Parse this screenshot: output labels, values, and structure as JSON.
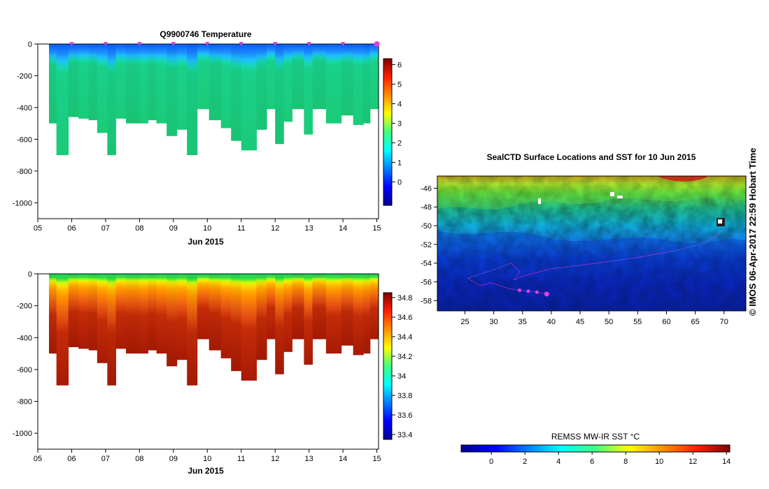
{
  "chart_data": [
    {
      "type": "heatmap",
      "title": "Q9900746  Temperature",
      "xlabel": "Jun 2015",
      "ylabel": "",
      "x_tick_labels": [
        "05",
        "06",
        "07",
        "08",
        "09",
        "10",
        "11",
        "12",
        "13",
        "14",
        "15"
      ],
      "x_range": [
        5,
        15.05
      ],
      "y_tick_labels": [
        "0",
        "-200",
        "-400",
        "-600",
        "-800",
        "-1000"
      ],
      "y_tick_values": [
        0,
        -200,
        -400,
        -600,
        -800,
        -1000
      ],
      "ylim": [
        -1100,
        0
      ],
      "colorbar_tick_labels": [
        "6",
        "5",
        "4",
        "3",
        "2",
        "1",
        "0"
      ],
      "colorbar_tick_values": [
        6,
        5,
        4,
        3,
        2,
        1,
        0
      ],
      "colorbar_range": [
        -1.2,
        6.3
      ],
      "profile_markers_day": [
        6,
        7,
        8,
        9,
        10,
        11,
        12,
        13,
        14,
        15
      ],
      "profiles_bottom_depth": [
        [
          5.33,
          -500
        ],
        [
          5.55,
          -700
        ],
        [
          5.9,
          -460
        ],
        [
          6.2,
          -470
        ],
        [
          6.5,
          -480
        ],
        [
          6.75,
          -560
        ],
        [
          7.05,
          -700
        ],
        [
          7.3,
          -470
        ],
        [
          7.6,
          -500
        ],
        [
          8.0,
          -500
        ],
        [
          8.25,
          -480
        ],
        [
          8.5,
          -500
        ],
        [
          8.8,
          -580
        ],
        [
          9.1,
          -540
        ],
        [
          9.4,
          -700
        ],
        [
          9.7,
          -410
        ],
        [
          10.05,
          -480
        ],
        [
          10.4,
          -530
        ],
        [
          10.7,
          -610
        ],
        [
          11.0,
          -670
        ],
        [
          11.45,
          -540
        ],
        [
          11.75,
          -410
        ],
        [
          12.0,
          -630
        ],
        [
          12.25,
          -490
        ],
        [
          12.5,
          -410
        ],
        [
          12.85,
          -570
        ],
        [
          13.1,
          -410
        ],
        [
          13.5,
          -500
        ],
        [
          13.95,
          -450
        ],
        [
          14.3,
          -510
        ],
        [
          14.6,
          -500
        ],
        [
          14.8,
          -410
        ],
        [
          15.05,
          -400
        ]
      ],
      "value_description": "Surface about 0-1 C (blue), increasing to about 2-3 C (green) below 250 m"
    },
    {
      "type": "heatmap",
      "title": "",
      "xlabel": "Jun 2015",
      "ylabel": "",
      "x_tick_labels": [
        "05",
        "06",
        "07",
        "08",
        "09",
        "10",
        "11",
        "12",
        "13",
        "14",
        "15"
      ],
      "x_range": [
        5,
        15.05
      ],
      "y_tick_labels": [
        "0",
        "-200",
        "-400",
        "-600",
        "-800",
        "-1000"
      ],
      "y_tick_values": [
        0,
        -200,
        -400,
        -600,
        -800,
        -1000
      ],
      "ylim": [
        -1100,
        0
      ],
      "colorbar_tick_labels": [
        "34.8",
        "34.6",
        "34.4",
        "34.2",
        "34",
        "33.8",
        "33.6",
        "33.4"
      ],
      "colorbar_tick_values": [
        34.8,
        34.6,
        34.4,
        34.2,
        34.0,
        33.8,
        33.6,
        33.4
      ],
      "colorbar_range": [
        33.35,
        34.85
      ],
      "value_description": "Surface about 34.1 (green), increasing to about 34.7 (red) below 500 m"
    },
    {
      "type": "heatmap",
      "title": "SealCTD Surface Locations and SST for 10 Jun 2015",
      "xlabel": "",
      "ylabel": "",
      "x_tick_labels": [
        "25",
        "30",
        "35",
        "40",
        "45",
        "50",
        "55",
        "60",
        "65",
        "70"
      ],
      "x_tick_values": [
        25,
        30,
        35,
        40,
        45,
        50,
        55,
        60,
        65,
        70
      ],
      "xlim": [
        20.2,
        73.8
      ],
      "y_tick_labels": [
        "-46",
        "-48",
        "-50",
        "-52",
        "-54",
        "-56",
        "-58"
      ],
      "y_tick_values": [
        -46,
        -48,
        -50,
        -52,
        -54,
        -56,
        -58
      ],
      "ylim": [
        -59.1,
        -44.7
      ],
      "track_lon_lat": [
        [
          39.2,
          -57.3
        ],
        [
          37.5,
          -57.1
        ],
        [
          36.0,
          -57.0
        ],
        [
          34.5,
          -56.9
        ],
        [
          32.5,
          -56.7
        ],
        [
          29.5,
          -56.1
        ],
        [
          27.5,
          -56.4
        ],
        [
          25.5,
          -55.6
        ],
        [
          27.5,
          -55.2
        ],
        [
          30.5,
          -54.6
        ],
        [
          33.0,
          -54.0
        ],
        [
          34.5,
          -54.9
        ],
        [
          33.5,
          -55.8
        ],
        [
          35.0,
          -55.4
        ],
        [
          40.0,
          -54.6
        ],
        [
          48.0,
          -54.0
        ],
        [
          55.0,
          -53.4
        ],
        [
          62.0,
          -52.6
        ],
        [
          67.0,
          -51.8
        ],
        [
          69.5,
          -50.6
        ]
      ],
      "colorbar_label": "REMSS MW-IR SST °C",
      "colorbar_tick_labels": [
        "0",
        "2",
        "4",
        "6",
        "8",
        "10",
        "12",
        "14"
      ],
      "colorbar_tick_values": [
        0,
        2,
        4,
        6,
        8,
        10,
        12,
        14
      ],
      "colorbar_range": [
        -1.8,
        14.2
      ]
    }
  ],
  "credit": "© IMOS 06-Apr-2017 22:59 Hobart Time",
  "colors": {
    "track": "#e040e0",
    "jet": [
      "#00008f",
      "#0000ff",
      "#0080ff",
      "#00ffff",
      "#80ff80",
      "#ffff00",
      "#ff8000",
      "#ff0000",
      "#800000"
    ]
  }
}
